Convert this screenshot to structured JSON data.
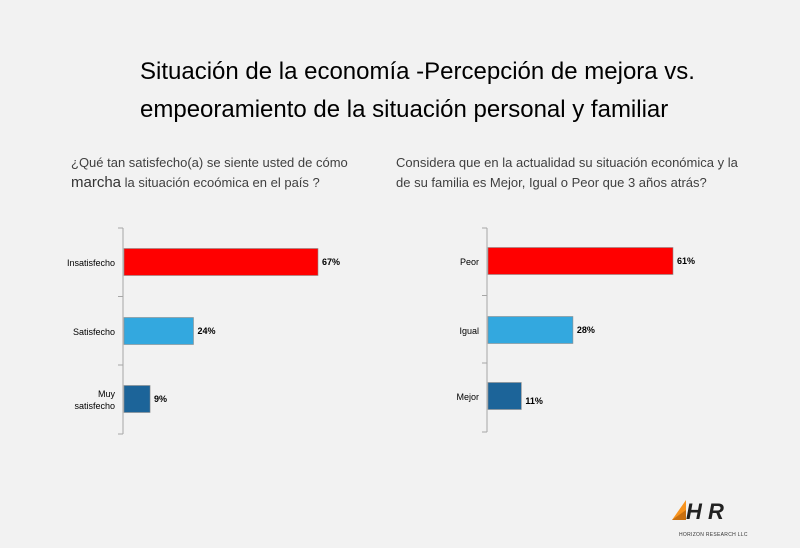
{
  "title": {
    "line1": "Situación de la economía -Percepción de mejora  vs.",
    "line2": "empeoramiento de la situación personal y familiar"
  },
  "left": {
    "question_part1": "¿Qué tan satisfecho(a) se siente usted de cómo",
    "question_big": "marcha",
    "question_part2": " la  situación ecoómica en el país ?"
  },
  "right": {
    "question_line1": "Considera que en la actualidad su situación económica y la",
    "question_line2": "de su familia  es Mejor, Igual o Peor que 3 años atrás?"
  },
  "chart_data": [
    {
      "type": "bar",
      "orientation": "horizontal",
      "categories": [
        "Insatisfecho",
        "Satisfecho",
        "Muy satisfecho"
      ],
      "values": [
        67,
        24,
        9
      ],
      "value_labels": [
        "67%",
        "24%",
        "9%"
      ],
      "colors": [
        "#ff0000",
        "#33a8df",
        "#1c6499"
      ],
      "xlim": [
        0,
        70
      ],
      "grid": false
    },
    {
      "type": "bar",
      "orientation": "horizontal",
      "categories": [
        "Peor",
        "Igual",
        "Mejor"
      ],
      "values": [
        61,
        28,
        11
      ],
      "value_labels": [
        "61%",
        "28%",
        "11%"
      ],
      "colors": [
        "#ff0000",
        "#33a8df",
        "#1c6499"
      ],
      "xlim": [
        0,
        70
      ],
      "grid": false
    }
  ],
  "logo": {
    "letters": "H R",
    "subtitle": "HORIZON RESEARCH LLC",
    "accent_color": "#f7931e"
  }
}
